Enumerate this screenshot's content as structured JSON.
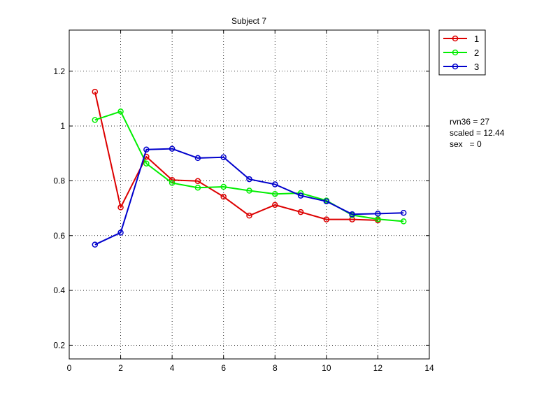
{
  "chart_data": {
    "type": "line",
    "title": "Subject 7",
    "xlabel": "",
    "ylabel": "",
    "xlim": [
      0,
      14
    ],
    "ylim": [
      0.15,
      1.35
    ],
    "xticks": [
      0,
      2,
      4,
      6,
      8,
      10,
      12,
      14
    ],
    "yticks": [
      0.2,
      0.4,
      0.6,
      0.8,
      1,
      1.2
    ],
    "xtick_labels": [
      "0",
      "2",
      "4",
      "6",
      "8",
      "10",
      "12",
      "14"
    ],
    "ytick_labels": [
      "0.2",
      "0.4",
      "0.6",
      "0.8",
      "1",
      "1.2"
    ],
    "grid": true,
    "marker": "circle",
    "legend_position": "outside-top-right",
    "series": [
      {
        "name": "1",
        "color": "#dd0000",
        "x": [
          1,
          2,
          3,
          4,
          5,
          6,
          7,
          8,
          9,
          10,
          11,
          12
        ],
        "y": [
          1.125,
          0.703,
          0.888,
          0.803,
          0.799,
          0.742,
          0.673,
          0.712,
          0.686,
          0.659,
          0.659,
          0.656
        ]
      },
      {
        "name": "2",
        "color": "#00ee00",
        "x": [
          1,
          2,
          3,
          4,
          5,
          6,
          7,
          8,
          9,
          10,
          11,
          12,
          13
        ],
        "y": [
          1.022,
          1.053,
          0.863,
          0.792,
          0.775,
          0.778,
          0.764,
          0.752,
          0.755,
          0.728,
          0.675,
          0.66,
          0.652
        ]
      },
      {
        "name": "3",
        "color": "#0000cc",
        "x": [
          1,
          2,
          3,
          4,
          5,
          6,
          7,
          8,
          9,
          10,
          11,
          12,
          13
        ],
        "y": [
          0.567,
          0.611,
          0.914,
          0.917,
          0.883,
          0.886,
          0.806,
          0.787,
          0.746,
          0.725,
          0.678,
          0.68,
          0.683
        ]
      }
    ],
    "annotations": [
      "rvn36 = 27",
      "scaled = 12.44",
      "sex   = 0"
    ]
  }
}
